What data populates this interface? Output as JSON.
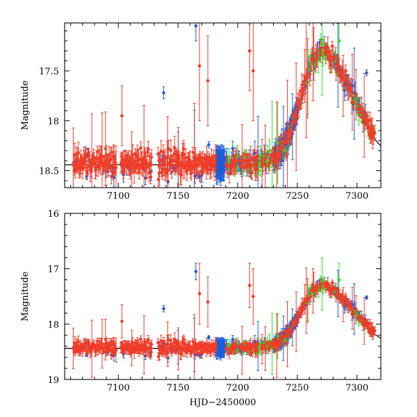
{
  "chart_data": [
    {
      "type": "scatter",
      "panel": "top",
      "title": "",
      "xlabel": "",
      "ylabel": "Magnitude",
      "xlim": [
        7055,
        7320
      ],
      "ylim": [
        18.67,
        17.02
      ],
      "y_inverted": true,
      "xticks": [
        "7100",
        "7150",
        "7200",
        "7250",
        "7300"
      ],
      "yticks": [
        "17.5",
        "18",
        "18.5"
      ],
      "grid": false,
      "series": [
        {
          "name": "red",
          "color": "#f03c28"
        },
        {
          "name": "blue",
          "color": "#1a5fdc"
        },
        {
          "name": "green",
          "color": "#28e628"
        }
      ],
      "model_curve": "black line along lower baseline"
    },
    {
      "type": "scatter",
      "panel": "bottom",
      "title": "",
      "xlabel": "HJD−2450000",
      "ylabel": "Magnitude",
      "xlim": [
        7055,
        7320
      ],
      "ylim": [
        19,
        16
      ],
      "y_inverted": true,
      "xticks": [
        "7100",
        "7150",
        "7200",
        "7250",
        "7300"
      ],
      "yticks": [
        "16",
        "17",
        "18",
        "19"
      ],
      "grid": false,
      "series": [
        {
          "name": "red",
          "color": "#f03c28"
        },
        {
          "name": "blue",
          "color": "#1a5fdc"
        },
        {
          "name": "green",
          "color": "#28e628"
        }
      ],
      "model_curve": "black line along lower baseline"
    }
  ],
  "lightcurve": {
    "baseline_mag": 18.42,
    "peak_hjd": 7269,
    "peak_mag": 17.3,
    "rise_days": 22,
    "decline_days": 38
  }
}
